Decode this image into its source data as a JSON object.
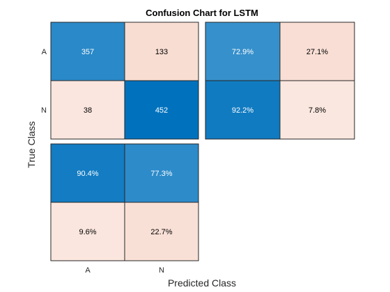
{
  "chart_data": {
    "type": "heatmap",
    "title": "Confusion Chart for LSTM",
    "xlabel": "Predicted Class",
    "ylabel": "True Class",
    "classes": [
      "A",
      "N"
    ],
    "matrix": {
      "values": [
        [
          357,
          133
        ],
        [
          38,
          452
        ]
      ],
      "labels": [
        [
          "357",
          "133"
        ],
        [
          "38",
          "452"
        ]
      ]
    },
    "row_summary": {
      "values": [
        [
          72.9,
          27.1
        ],
        [
          92.2,
          7.8
        ]
      ],
      "labels": [
        [
          "72.9%",
          "27.1%"
        ],
        [
          "92.2%",
          "7.8%"
        ]
      ]
    },
    "column_summary": {
      "values": [
        [
          90.4,
          77.3
        ],
        [
          9.6,
          22.7
        ]
      ],
      "labels": [
        [
          "90.4%",
          "77.3%"
        ],
        [
          "9.6%",
          "22.7%"
        ]
      ]
    }
  },
  "colors": {
    "correct_light": "#c8dff1",
    "correct_dark": "#0072bd",
    "incorrect_light": "#fbeae3",
    "incorrect_dark": "#f0bfaa",
    "text_dark": "#000000",
    "text_light": "#ffffff",
    "border": "#262626"
  }
}
